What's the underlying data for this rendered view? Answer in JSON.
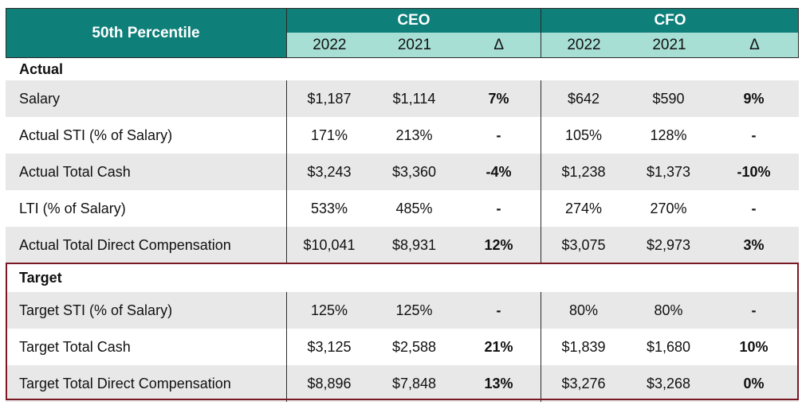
{
  "header": {
    "title": "50th Percentile",
    "groups": [
      "CEO",
      "CFO"
    ],
    "ceo_cols": [
      "2022",
      "2021",
      "Δ"
    ],
    "cfo_cols": [
      "2022",
      "2021",
      "Δ"
    ]
  },
  "sections": {
    "actual": "Actual",
    "target": "Target"
  },
  "rows": [
    {
      "label": "Salary",
      "ceo": [
        "$1,187",
        "$1,114",
        "7%"
      ],
      "cfo": [
        "$642",
        "$590",
        "9%"
      ]
    },
    {
      "label": "Actual STI (% of Salary)",
      "ceo": [
        "171%",
        "213%",
        "-"
      ],
      "cfo": [
        "105%",
        "128%",
        "-"
      ]
    },
    {
      "label": "Actual Total Cash",
      "ceo": [
        "$3,243",
        "$3,360",
        "-4%"
      ],
      "cfo": [
        "$1,238",
        "$1,373",
        "-10%"
      ]
    },
    {
      "label": "LTI (% of Salary)",
      "ceo": [
        "533%",
        "485%",
        "-"
      ],
      "cfo": [
        "274%",
        "270%",
        "-"
      ]
    },
    {
      "label": "Actual Total Direct Compensation",
      "ceo": [
        "$10,041",
        "$8,931",
        "12%"
      ],
      "cfo": [
        "$3,075",
        "$2,973",
        "3%"
      ]
    },
    {
      "label": "Target STI (% of Salary)",
      "ceo": [
        "125%",
        "125%",
        "-"
      ],
      "cfo": [
        "80%",
        "80%",
        "-"
      ]
    },
    {
      "label": "Target Total Cash",
      "ceo": [
        "$3,125",
        "$2,588",
        "21%"
      ],
      "cfo": [
        "$1,839",
        "$1,680",
        "10%"
      ]
    },
    {
      "label": "Target Total Direct Compensation",
      "ceo": [
        "$8,896",
        "$7,848",
        "13%"
      ],
      "cfo": [
        "$3,276",
        "$3,268",
        "0%"
      ]
    }
  ],
  "colors": {
    "header_teal": "#0e7f79",
    "subheader_mint": "#a7dfd5",
    "row_shade": "#e8e8e8",
    "target_border": "#7a1824"
  }
}
